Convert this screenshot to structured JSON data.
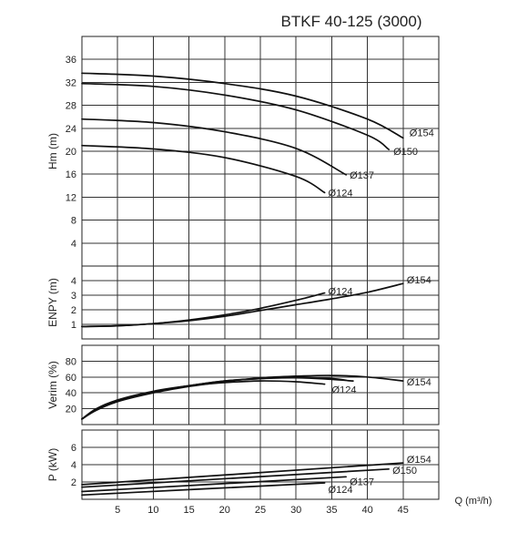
{
  "chart_data": {
    "type": "line",
    "title": "BTKF 40-125 (3000)",
    "xlabel": "Q (m³/h)",
    "x_ticks": [
      5,
      10,
      15,
      20,
      25,
      30,
      35,
      40,
      45
    ],
    "xlim": [
      0,
      50
    ],
    "grid": true,
    "panels": [
      {
        "id": "head",
        "ylabel": "Hm (m)",
        "ylim": [
          0,
          40
        ],
        "y_ticks": [
          4,
          8,
          12,
          16,
          20,
          24,
          28,
          32,
          36
        ],
        "series": [
          {
            "name": "154",
            "label": "Ø154",
            "x": [
              0,
              10,
              20,
              30,
              40,
              45
            ],
            "y": [
              33.6,
              33.1,
              31.8,
              29.6,
              25.6,
              22.3
            ]
          },
          {
            "name": "150",
            "label": "Ø150",
            "x": [
              0,
              10,
              20,
              30,
              40,
              43
            ],
            "y": [
              31.8,
              31.3,
              29.8,
              27.2,
              22.8,
              20.3
            ]
          },
          {
            "name": "137",
            "label": "Ø137",
            "x": [
              0,
              10,
              20,
              30,
              37
            ],
            "y": [
              25.6,
              25.0,
              23.4,
              20.5,
              15.9
            ]
          },
          {
            "name": "124",
            "label": "Ø124",
            "x": [
              0,
              10,
              20,
              30,
              34
            ],
            "y": [
              21.0,
              20.4,
              18.9,
              15.6,
              12.8
            ]
          }
        ]
      },
      {
        "id": "npsh",
        "ylabel": "ENPY (m)",
        "ylim": [
          0,
          5
        ],
        "y_ticks": [
          1,
          2,
          3,
          4
        ],
        "series": [
          {
            "name": "124",
            "label": "Ø124",
            "x": [
              0,
              5,
              10,
              15,
              20,
              25,
              30,
              34
            ],
            "y": [
              0.85,
              0.9,
              1.05,
              1.3,
              1.65,
              2.1,
              2.65,
              3.15
            ]
          },
          {
            "name": "154",
            "label": "Ø154",
            "x": [
              0,
              5,
              10,
              15,
              20,
              25,
              30,
              35,
              40,
              45
            ],
            "y": [
              0.85,
              0.9,
              1.05,
              1.25,
              1.55,
              1.95,
              2.35,
              2.75,
              3.2,
              3.8
            ]
          }
        ]
      },
      {
        "id": "efficiency",
        "ylabel": "Verim (%)",
        "ylim": [
          0,
          100
        ],
        "y_ticks": [
          20,
          40,
          60,
          80
        ],
        "series": [
          {
            "name": "154",
            "label": "Ø154",
            "x": [
              0,
              2,
              5,
              10,
              15,
              20,
              25,
              30,
              35,
              40,
              45
            ],
            "y": [
              7,
              18,
              29,
              40,
              48,
              54,
              59,
              61,
              62,
              60,
              55
            ]
          },
          {
            "name": "150",
            "x": [
              0,
              2,
              5,
              10,
              15,
              20,
              25,
              30,
              35,
              37
            ],
            "y": [
              7,
              19,
              30,
              41,
              49,
              55,
              58,
              60,
              58,
              56
            ]
          },
          {
            "name": "137",
            "x": [
              0,
              2,
              5,
              10,
              15,
              20,
              25,
              30,
              35,
              38
            ],
            "y": [
              7,
              19,
              30,
              41,
              49,
              55,
              58,
              59,
              57,
              55
            ]
          },
          {
            "name": "124",
            "label": "Ø124",
            "x": [
              0,
              2,
              5,
              10,
              15,
              20,
              25,
              30,
              34
            ],
            "y": [
              7,
              20,
              31,
              42,
              49,
              53,
              55,
              54,
              51
            ]
          }
        ]
      },
      {
        "id": "power",
        "ylabel": "P (kW)",
        "ylim": [
          0,
          8
        ],
        "y_ticks": [
          2,
          4,
          6
        ],
        "series": [
          {
            "name": "154",
            "label": "Ø154",
            "x": [
              0,
              45
            ],
            "y": [
              1.7,
              4.2
            ]
          },
          {
            "name": "150",
            "label": "Ø150",
            "x": [
              0,
              43
            ],
            "y": [
              1.4,
              3.5
            ]
          },
          {
            "name": "137",
            "label": "Ø137",
            "x": [
              0,
              37
            ],
            "y": [
              0.9,
              2.6
            ]
          },
          {
            "name": "124",
            "label": "Ø124",
            "x": [
              0,
              34
            ],
            "y": [
              0.5,
              1.9
            ]
          }
        ]
      }
    ]
  }
}
